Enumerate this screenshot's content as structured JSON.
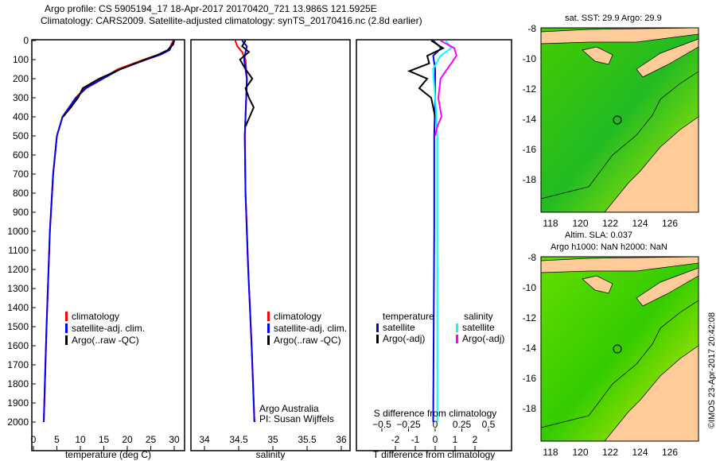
{
  "title": {
    "line1": "Argo profile: CS 5905194_17 18-Apr-2017 20170420_721 13.986S 121.5925E",
    "line2": "Climatology: CARS2009. Satellite-adjusted climatology: synTS_20170416.nc (2.8d earlier)"
  },
  "chart_data": [
    {
      "type": "line",
      "xlabel": "temperature (deg C)",
      "ylabel": "",
      "xlim": [
        -2,
        31
      ],
      "ylim": [
        2060,
        0
      ],
      "xticks": [
        0,
        5,
        10,
        15,
        20,
        25,
        30
      ],
      "yticks": [
        0,
        100,
        200,
        300,
        400,
        500,
        600,
        700,
        800,
        900,
        1000,
        1100,
        1200,
        1300,
        1400,
        1500,
        1600,
        1700,
        1800,
        1900,
        2000
      ],
      "legend": [
        "climatology",
        "satellite-adj. clim.",
        "Argo(..raw -QC)"
      ],
      "series": [
        {
          "name": "climatology",
          "color": "#ff0000",
          "depth": [
            0,
            50,
            75,
            100,
            150,
            200,
            250,
            300,
            400,
            500,
            700,
            1000,
            1500,
            2000
          ],
          "values": [
            29.8,
            28.8,
            26.5,
            23.5,
            18,
            14.5,
            11,
            9,
            6.2,
            5,
            4.2,
            3.5,
            2.8,
            2.2
          ]
        },
        {
          "name": "satellite-adj. clim.",
          "color": "#0000ff",
          "depth": [
            0,
            50,
            75,
            100,
            150,
            200,
            250,
            300,
            400,
            500,
            700,
            1000,
            1500,
            2000
          ],
          "values": [
            30,
            29,
            27,
            24,
            18.5,
            14.8,
            11.2,
            9.1,
            6.2,
            5,
            4.2,
            3.5,
            2.8,
            2.2
          ]
        },
        {
          "name": "Argo(..raw -QC)",
          "color": "#000000",
          "depth": [
            0,
            20,
            50,
            75,
            100,
            150,
            200,
            250,
            300,
            350,
            400
          ],
          "values": [
            30,
            29.8,
            28.6,
            26.5,
            23.8,
            18.6,
            14,
            10.5,
            9.5,
            8,
            6.3
          ]
        }
      ]
    },
    {
      "type": "line",
      "xlabel": "salinity",
      "xlim": [
        33.8,
        36.1
      ],
      "ylim": [
        2060,
        0
      ],
      "xticks": [
        34,
        34.5,
        35,
        35.5,
        36
      ],
      "legend": [
        "climatology",
        "satellite-adj. clim.",
        "Argo(..raw -QC)"
      ],
      "annotation": [
        "Argo Australia",
        "PI: Susan Wijffels"
      ],
      "series": [
        {
          "name": "climatology",
          "color": "#ff0000",
          "depth": [
            0,
            30,
            60,
            100,
            200,
            300,
            500,
            800,
            1200,
            1600,
            2000
          ],
          "values": [
            34.45,
            34.48,
            34.55,
            34.6,
            34.62,
            34.61,
            34.59,
            34.6,
            34.64,
            34.69,
            34.73
          ]
        },
        {
          "name": "satellite-adj. clim.",
          "color": "#0000ff",
          "depth": [
            0,
            30,
            60,
            100,
            200,
            300,
            500,
            800,
            1200,
            1600,
            2000
          ],
          "values": [
            34.55,
            34.62,
            34.6,
            34.58,
            34.62,
            34.61,
            34.59,
            34.6,
            34.64,
            34.69,
            34.73
          ]
        },
        {
          "name": "Argo(..raw -QC)",
          "color": "#000000",
          "depth": [
            0,
            30,
            60,
            100,
            150,
            200,
            250,
            300,
            350,
            400,
            450
          ],
          "values": [
            34.6,
            34.55,
            34.65,
            34.52,
            34.6,
            34.7,
            34.6,
            34.65,
            34.72,
            34.66,
            34.6
          ]
        }
      ]
    },
    {
      "type": "line",
      "xlabel": "T difference from climatology",
      "xlabel2": "S difference from climatology",
      "xlim": [
        -2.6,
        2.9
      ],
      "ylim": [
        2060,
        0
      ],
      "xticks": [
        -2,
        -1,
        0,
        1,
        2
      ],
      "xticks2": [
        -0.5,
        -0.25,
        0,
        0.25,
        0.5
      ],
      "legend_temperature": {
        "heading": "temperature",
        "items": [
          "satellite",
          "Argo(-adj)"
        ]
      },
      "legend_salinity": {
        "heading": "salinity",
        "items": [
          "satellite",
          "Argo(-adj)"
        ]
      },
      "series": [
        {
          "name": "temperature satellite",
          "color": "#0000ff",
          "unit": "T",
          "depth": [
            0,
            40,
            80,
            150,
            300,
            500,
            1000,
            2000
          ],
          "values": [
            -0.1,
            0.3,
            -0.1,
            0,
            0,
            -0.05,
            -0.05,
            -0.1
          ]
        },
        {
          "name": "temperature Argo(-adj)",
          "color": "#000000",
          "unit": "T",
          "depth": [
            0,
            40,
            80,
            120,
            160,
            200,
            250,
            300,
            350,
            400
          ],
          "values": [
            -0.2,
            0.4,
            -0.4,
            -0.3,
            -1.3,
            -0.4,
            -0.8,
            -0.2,
            -0.1,
            0
          ]
        },
        {
          "name": "salinity satellite",
          "color": "#00ffff",
          "unit": "S",
          "depth": [
            0,
            40,
            80,
            150,
            300,
            500,
            1000,
            2000
          ],
          "values": [
            0.1,
            0.15,
            0.05,
            -0.02,
            0,
            0.02,
            0.02,
            0.02
          ]
        },
        {
          "name": "salinity Argo(-adj)",
          "color": "#ff00ff",
          "unit": "S",
          "depth": [
            0,
            40,
            80,
            120,
            200,
            300,
            400,
            450,
            500
          ],
          "values": [
            0.05,
            0.18,
            0.2,
            0.15,
            0.05,
            0.03,
            0.06,
            0.02,
            0
          ]
        }
      ]
    }
  ],
  "maps": {
    "sst": {
      "title": "sat. SST: 29.9 Argo: 29.9"
    },
    "sla": {
      "title1": "Altim. SLA: 0.037",
      "title2": "Argo h1000: NaN h2000: NaN"
    },
    "xticks": [
      "118",
      "120",
      "122",
      "124",
      "126"
    ],
    "yticks": [
      "-8",
      "-10",
      "-12",
      "-14",
      "-16",
      "-18"
    ]
  },
  "credit": "©IMOS 23-Apr-2017 20:42:08"
}
